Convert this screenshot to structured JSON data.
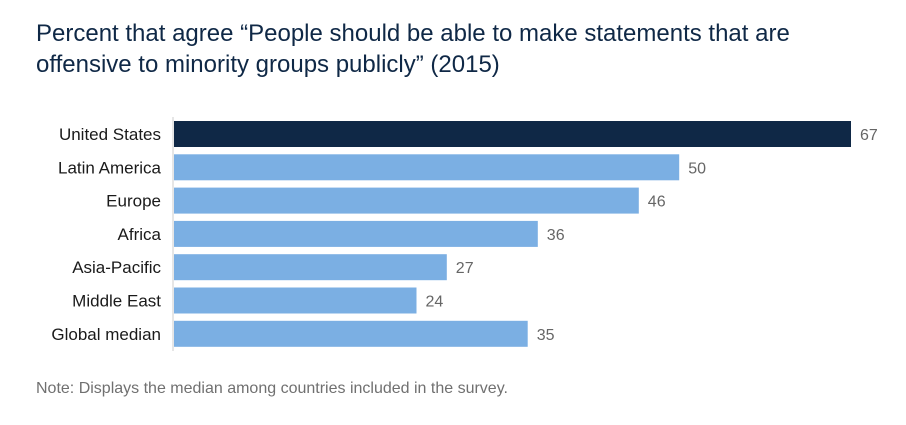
{
  "chart_data": {
    "type": "bar",
    "orientation": "horizontal",
    "title": "Percent that agree “People should be able to make statements that are offensive to minority groups publicly” (2015)",
    "categories": [
      "United States",
      "Latin America",
      "Europe",
      "Africa",
      "Asia-Pacific",
      "Middle East",
      "Global median"
    ],
    "values": [
      67,
      50,
      46,
      36,
      27,
      24,
      35
    ],
    "highlight": "United States",
    "colors": {
      "highlight": "#0f2846",
      "default": "#7bafe3",
      "axis": "#cccccc"
    },
    "xlim": [
      0,
      67
    ],
    "grid": false,
    "legend": "none",
    "note": "Note: Displays the median among countries included in the survey."
  }
}
